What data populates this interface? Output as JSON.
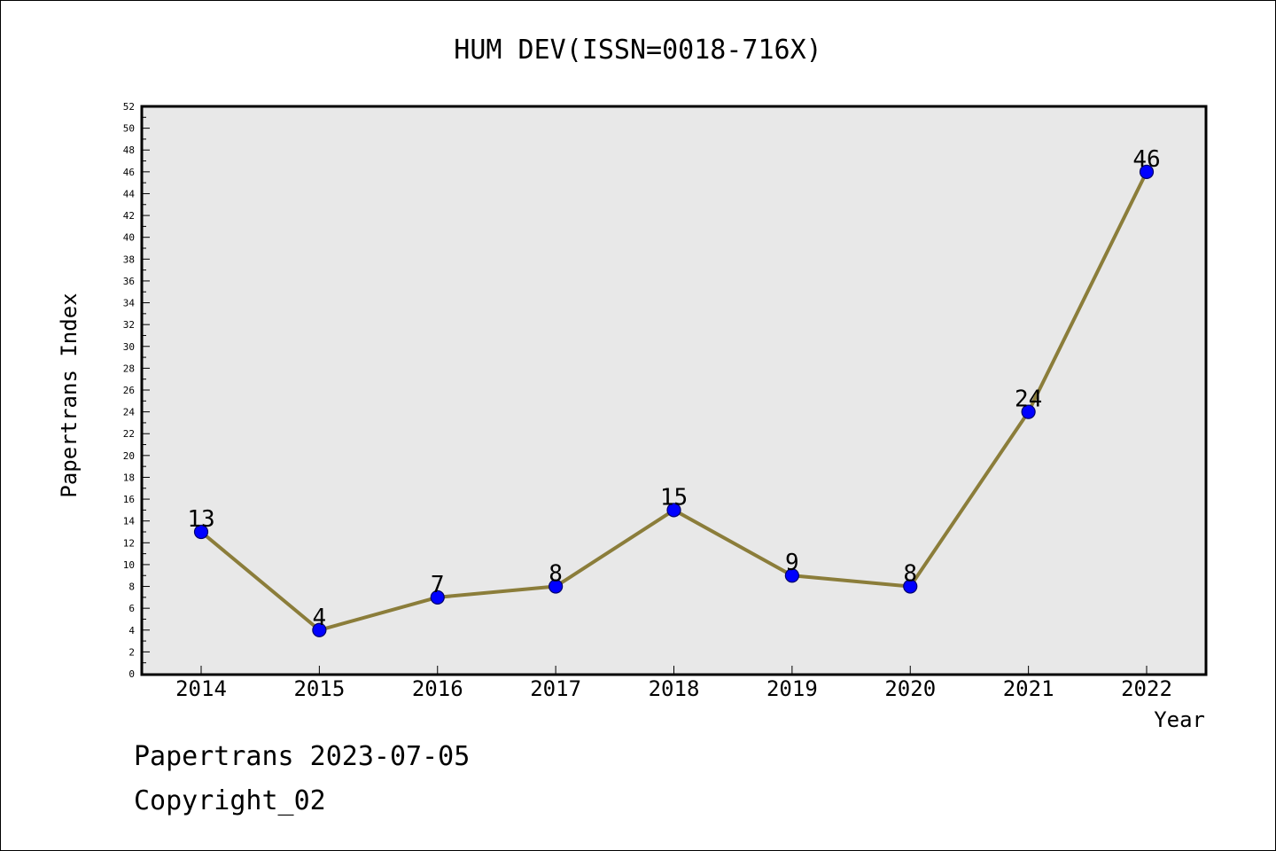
{
  "chart_data": {
    "type": "line",
    "title": "HUM DEV(ISSN=0018-716X)",
    "xlabel": "Year",
    "ylabel": "Papertrans Index",
    "categories": [
      "2014",
      "2015",
      "2016",
      "2017",
      "2018",
      "2019",
      "2020",
      "2021",
      "2022"
    ],
    "series": [
      {
        "values": [
          13,
          4,
          7,
          8,
          15,
          9,
          8,
          24,
          46
        ]
      }
    ],
    "data_labels": [
      "13",
      "4",
      "7",
      "8",
      "15",
      "9",
      "8",
      "24",
      "46"
    ],
    "ylim": [
      0,
      52
    ],
    "y_major_step": 2,
    "y_ticks": [
      "0",
      "2",
      "4",
      "6",
      "8",
      "10",
      "12",
      "14",
      "16",
      "18",
      "20",
      "22",
      "24",
      "26",
      "28",
      "30",
      "32",
      "34",
      "36",
      "38",
      "40",
      "42",
      "44",
      "46",
      "48",
      "50",
      "52"
    ],
    "grid": false,
    "legend": "none",
    "colors": {
      "line": "#8b7d3a",
      "marker_fill": "#0000ff",
      "marker_stroke": "#00006b",
      "plot_background": "#e8e8e8",
      "frame": "#000000"
    }
  },
  "footer": {
    "line1": "Papertrans 2023-07-05",
    "line2": "Copyright_02"
  }
}
